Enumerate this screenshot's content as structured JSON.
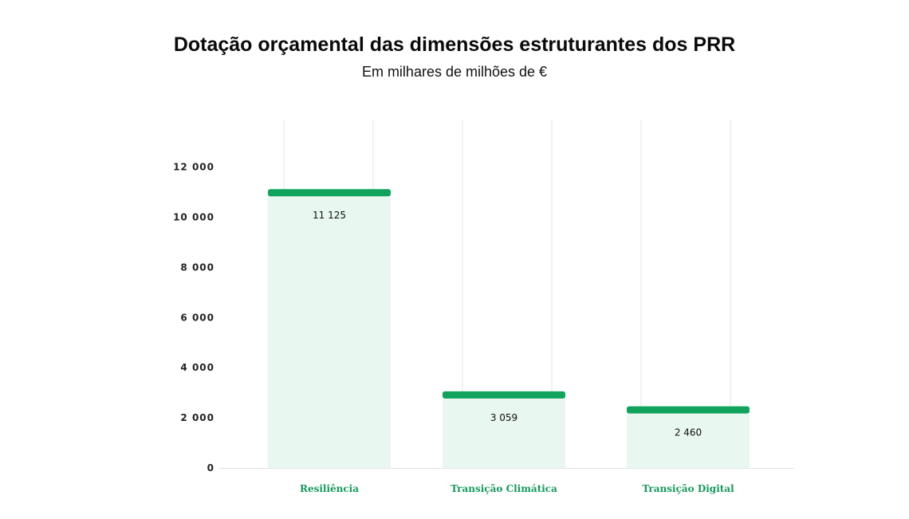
{
  "chart_data": {
    "type": "bar",
    "title": "Dotação orçamental das dimensões estruturantes dos PRR",
    "subtitle": "Em milhares de milhões de €",
    "categories": [
      "Resiliência",
      "Transição Climática",
      "Transição Digital"
    ],
    "values": [
      11125,
      3059,
      2460
    ],
    "value_labels": [
      "11 125",
      "3 059",
      "2 460"
    ],
    "y_ticks": [
      0,
      2000,
      4000,
      6000,
      8000,
      10000,
      12000
    ],
    "y_tick_labels": [
      "0",
      "2 000",
      "4 000",
      "6 000",
      "8 000",
      "10 000",
      "12 000"
    ],
    "ylim": [
      0,
      13900
    ],
    "grid": false,
    "legend": "none",
    "colors": {
      "bar_fill": "#e8f7f0",
      "bar_cap": "#0fa35c",
      "category_text": "#139a5a",
      "divider": "#e6e6e6"
    }
  }
}
